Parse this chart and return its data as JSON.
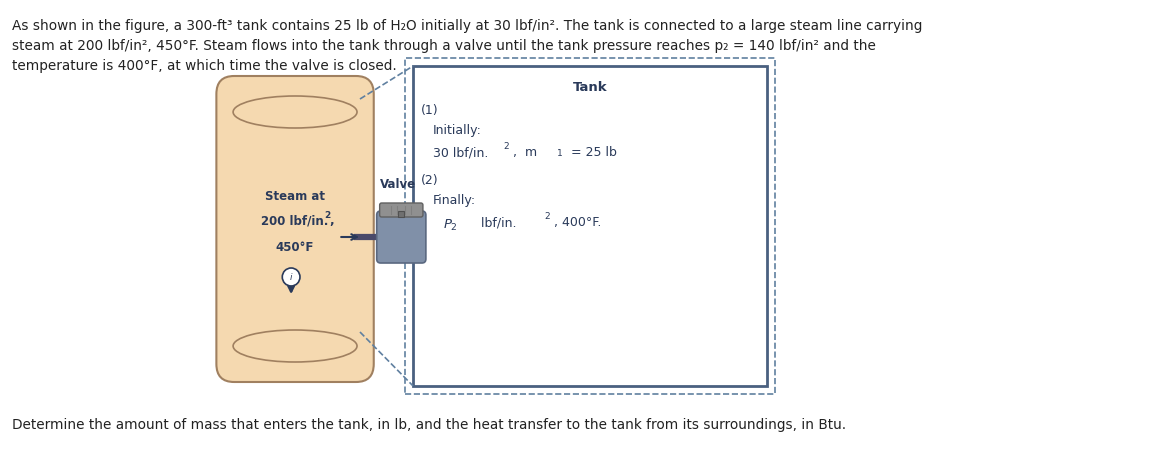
{
  "title_text": "As shown in the figure, a 300-ft³ tank contains 25 lb of H₂O initially at 30 lbf/in². The tank is connected to a large steam line carrying\nsteam at 200 lbf/in², 450°F. Steam flows into the tank through a valve until the tank pressure reaches p₂ = 140 lbf/in² and the\ntemperature is 400°F, at which time the valve is closed.",
  "bottom_text": "Determine the amount of mass that enters the tank, in lb, and the heat transfer to the tank from its surroundings, in Btu.",
  "steam_label_line1": "Steam at",
  "steam_label_line2": "200 lbf/in.",
  "steam_label_line3": "450°F",
  "valve_label": "Valve",
  "tank_label": "Tank",
  "state1_label": "(1)",
  "state1_initially": "Initially:",
  "state1_conditions": "30 lbf/in.",
  "state1_mass": "m₁ = 25 lb",
  "state2_label": "(2)",
  "state2_finally": "Finally:",
  "state2_conditions": "P₂ lbf/in.",
  "state2_temp": "400°F.",
  "pipe_color": "#4a4a6a",
  "steam_body_color": "#f5d9b0",
  "steam_body_edge": "#a08060",
  "tank_fill_color": "#e8f0f8",
  "tank_edge_color": "#4a6080",
  "valve_body_color": "#8090a8",
  "valve_top_color": "#909090",
  "text_color": "#2a3a5a",
  "arrow_color": "#2a3a5a",
  "dashed_color": "#6080a0"
}
